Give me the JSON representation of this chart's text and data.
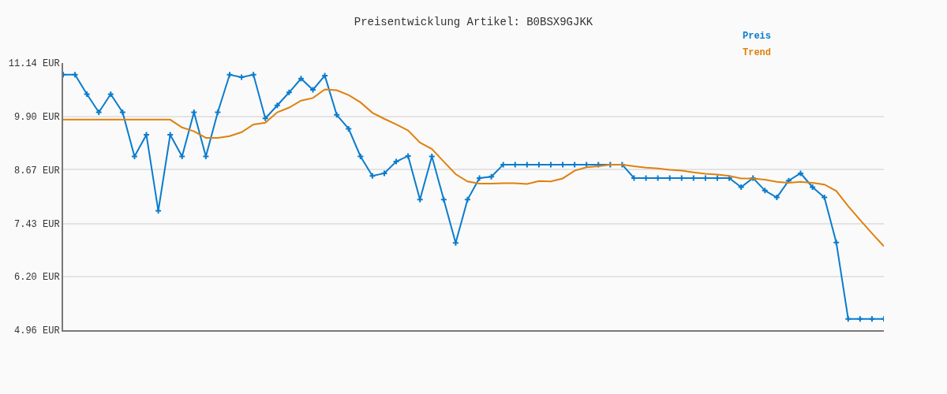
{
  "chart_data": {
    "type": "line",
    "title": "Preisentwicklung Artikel: B0BSX9GJKK",
    "categories": [
      null,
      null,
      null,
      null,
      null,
      null,
      null,
      null,
      null,
      null,
      null,
      null,
      null,
      null,
      null,
      null,
      null,
      null,
      null,
      null,
      null,
      null,
      null,
      null,
      null,
      null,
      null,
      null,
      null,
      null,
      null,
      null,
      null,
      null,
      null,
      null,
      null,
      null,
      null,
      null,
      null,
      null,
      null,
      null,
      null,
      null,
      null,
      null,
      null,
      null,
      null,
      null,
      null,
      null,
      null,
      null,
      null,
      null,
      null,
      null,
      null,
      null,
      null,
      null,
      null,
      null,
      null,
      null,
      null,
      null
    ],
    "series": [
      {
        "name": "Preis",
        "color": "#0a7ccd",
        "marker": "cross",
        "values": [
          10.87,
          10.87,
          10.42,
          10.0,
          10.42,
          10.0,
          8.98,
          9.48,
          7.72,
          9.48,
          8.98,
          10.0,
          8.98,
          10.0,
          10.87,
          10.81,
          10.87,
          9.86,
          10.16,
          10.46,
          10.78,
          10.52,
          10.85,
          9.94,
          9.62,
          8.98,
          8.53,
          8.59,
          8.86,
          8.99,
          7.98,
          8.98,
          7.98,
          6.98,
          7.98,
          8.48,
          8.51,
          8.79,
          8.79,
          8.79,
          8.79,
          8.79,
          8.79,
          8.79,
          8.79,
          8.79,
          8.79,
          8.79,
          8.48,
          8.48,
          8.48,
          8.48,
          8.48,
          8.48,
          8.48,
          8.48,
          8.48,
          8.27,
          8.48,
          8.19,
          8.03,
          8.42,
          8.59,
          8.27,
          8.03,
          6.99,
          5.22,
          5.22,
          5.22,
          5.22
        ]
      },
      {
        "name": "Trend",
        "color": "#e0800e",
        "marker": "none",
        "values": [
          9.83,
          9.83,
          9.83,
          9.83,
          9.83,
          9.83,
          9.83,
          9.83,
          9.83,
          9.83,
          9.65,
          9.56,
          9.41,
          9.41,
          9.45,
          9.54,
          9.72,
          9.76,
          10.0,
          10.11,
          10.27,
          10.33,
          10.53,
          10.51,
          10.4,
          10.23,
          9.99,
          9.85,
          9.72,
          9.58,
          9.3,
          9.15,
          8.86,
          8.57,
          8.4,
          8.35,
          8.35,
          8.36,
          8.36,
          8.34,
          8.41,
          8.4,
          8.47,
          8.65,
          8.73,
          8.75,
          8.79,
          8.79,
          8.75,
          8.72,
          8.7,
          8.67,
          8.65,
          8.61,
          8.58,
          8.56,
          8.53,
          8.47,
          8.47,
          8.44,
          8.39,
          8.37,
          8.39,
          8.37,
          8.33,
          8.18,
          7.83,
          7.51,
          7.2,
          6.9
        ]
      }
    ],
    "ylim": [
      4.96,
      11.14
    ],
    "yticks": [
      {
        "value": 4.96,
        "label": "4.96 EUR"
      },
      {
        "value": 6.2,
        "label": "6.20 EUR"
      },
      {
        "value": 7.43,
        "label": "7.43 EUR"
      },
      {
        "value": 8.67,
        "label": "8.67 EUR"
      },
      {
        "value": 9.9,
        "label": "9.90 EUR"
      },
      {
        "value": 11.14,
        "label": "11.14 EUR"
      }
    ],
    "grid": "y",
    "legend": "top right",
    "line_style": "solid",
    "tick_labels": "y"
  }
}
